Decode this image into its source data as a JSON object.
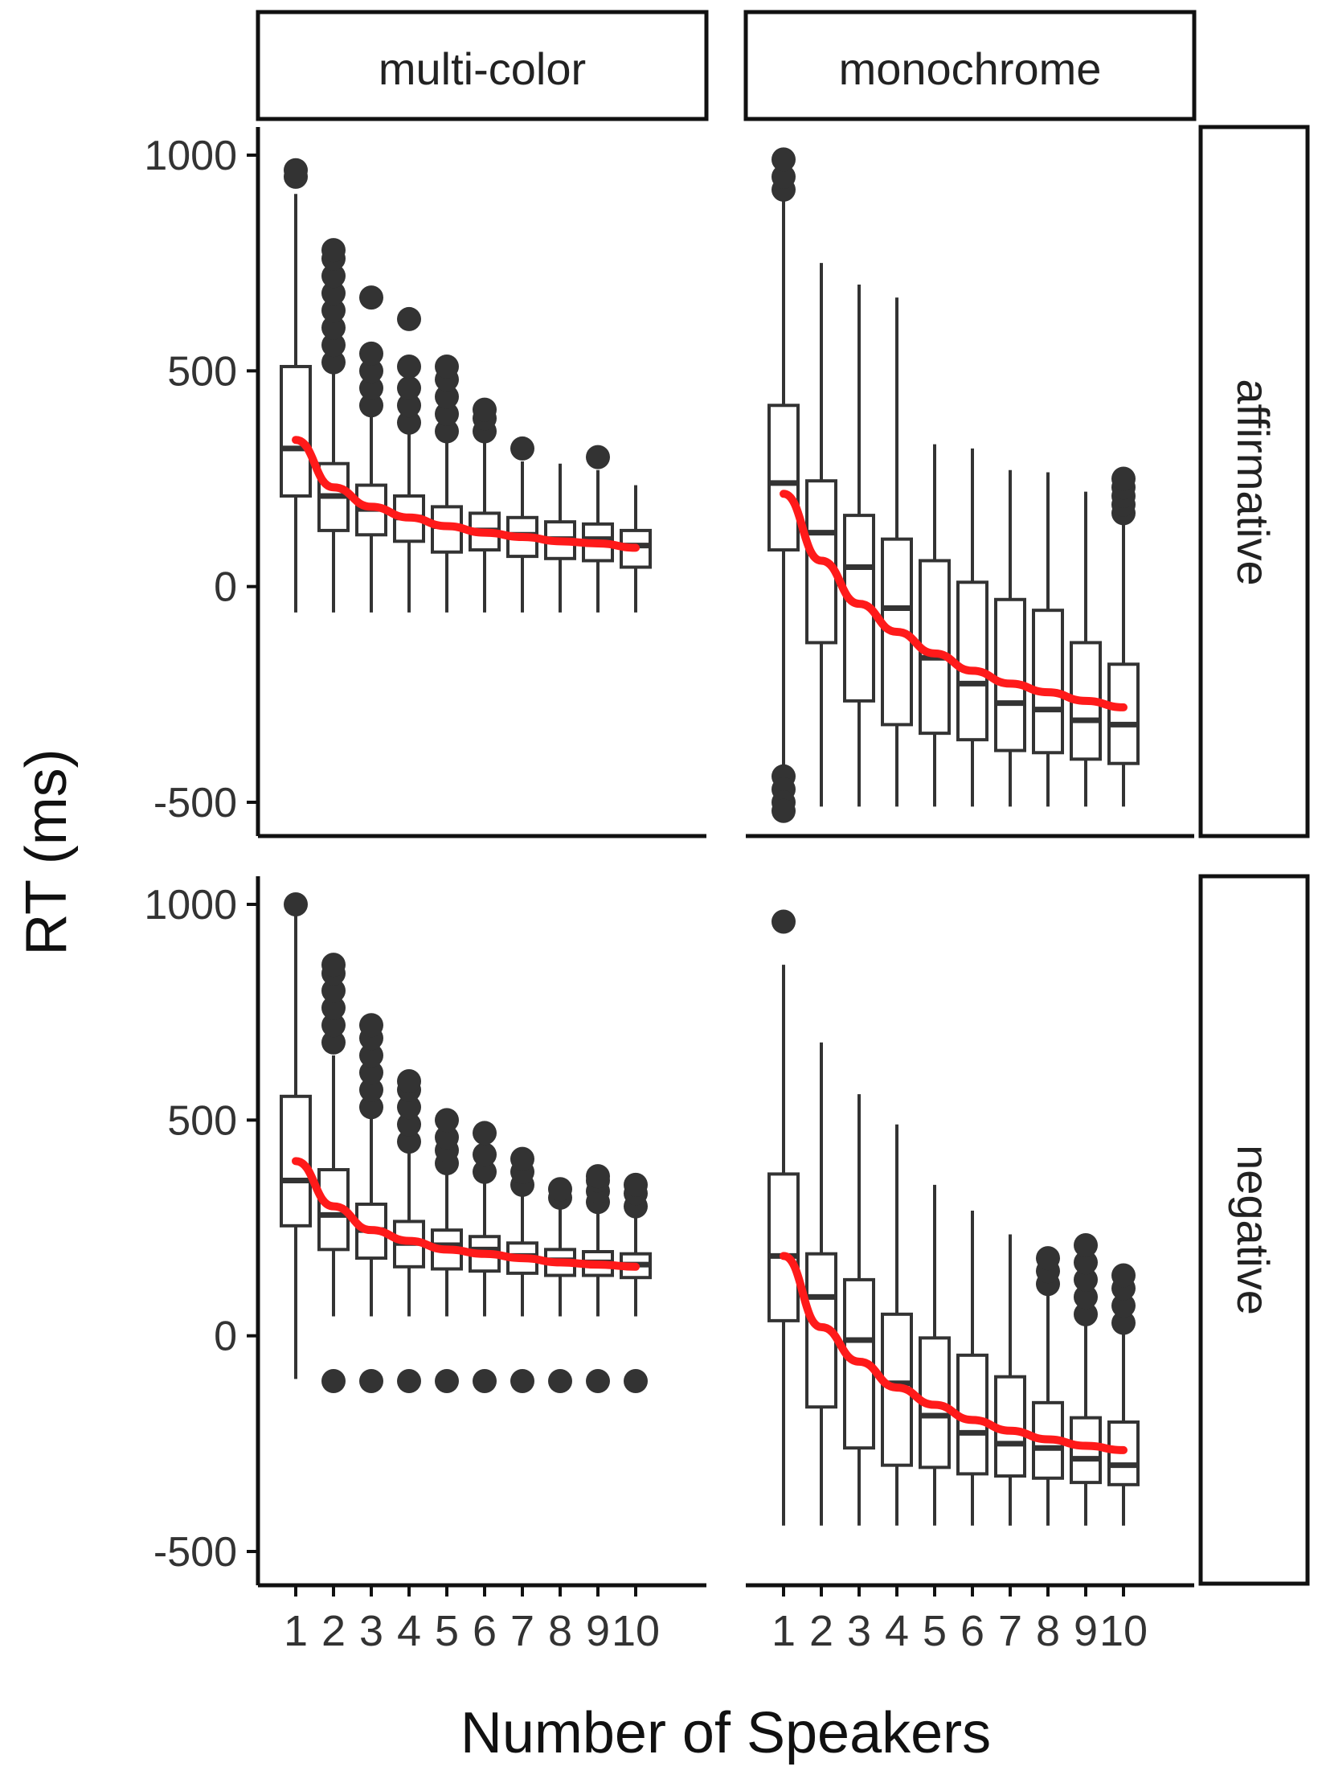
{
  "chart_data": {
    "type": "boxplot",
    "title": "",
    "xlabel": "Number of Speakers",
    "ylabel": "RT (ms)",
    "ylim": [
      -550,
      1070
    ],
    "yticks": [
      1000,
      500,
      0,
      -500
    ],
    "categories": [
      "1",
      "2",
      "3",
      "4",
      "5",
      "6",
      "7",
      "8",
      "9",
      "10"
    ],
    "column_facets": [
      "multi-color",
      "monochrome"
    ],
    "row_facets": [
      "affirmative",
      "negative"
    ],
    "colors": {
      "box": "#333333",
      "trend": "#ff1a1a",
      "outlier": "#333333"
    },
    "panels": [
      {
        "col": "multi-color",
        "row": "affirmative",
        "boxes": [
          {
            "x": "1",
            "lo": -60,
            "q1": 210,
            "med": 320,
            "q3": 510,
            "hi": 910,
            "outliers": [
              950,
              965
            ]
          },
          {
            "x": "2",
            "lo": -60,
            "q1": 130,
            "med": 210,
            "q3": 285,
            "hi": 500,
            "outliers": [
              520,
              560,
              600,
              640,
              680,
              720,
              760,
              780
            ]
          },
          {
            "x": "3",
            "lo": -60,
            "q1": 120,
            "med": 180,
            "q3": 235,
            "hi": 400,
            "outliers": [
              420,
              460,
              500,
              540,
              670
            ]
          },
          {
            "x": "4",
            "lo": -60,
            "q1": 105,
            "med": 160,
            "q3": 210,
            "hi": 355,
            "outliers": [
              380,
              420,
              460,
              510,
              620
            ]
          },
          {
            "x": "5",
            "lo": -60,
            "q1": 80,
            "med": 140,
            "q3": 185,
            "hi": 340,
            "outliers": [
              360,
              400,
              440,
              480,
              510
            ]
          },
          {
            "x": "6",
            "lo": -60,
            "q1": 85,
            "med": 130,
            "q3": 170,
            "hi": 345,
            "outliers": [
              360,
              390,
              410
            ]
          },
          {
            "x": "7",
            "lo": -60,
            "q1": 70,
            "med": 120,
            "q3": 160,
            "hi": 290,
            "outliers": [
              320
            ]
          },
          {
            "x": "8",
            "lo": -60,
            "q1": 65,
            "med": 110,
            "q3": 150,
            "hi": 285,
            "outliers": []
          },
          {
            "x": "9",
            "lo": -60,
            "q1": 60,
            "med": 110,
            "q3": 145,
            "hi": 270,
            "outliers": [
              300
            ]
          },
          {
            "x": "10",
            "lo": -60,
            "q1": 45,
            "med": 95,
            "q3": 130,
            "hi": 235,
            "outliers": []
          }
        ],
        "trend": [
          340,
          230,
          185,
          160,
          140,
          125,
          115,
          105,
          100,
          90
        ]
      },
      {
        "col": "monochrome",
        "row": "affirmative",
        "boxes": [
          {
            "x": "1",
            "lo": -430,
            "q1": 85,
            "med": 240,
            "q3": 420,
            "hi": 900,
            "outliers": [
              920,
              950,
              990,
              -440,
              -470,
              -500,
              -520
            ]
          },
          {
            "x": "2",
            "lo": -510,
            "q1": -130,
            "med": 125,
            "q3": 245,
            "hi": 750,
            "outliers": []
          },
          {
            "x": "3",
            "lo": -510,
            "q1": -265,
            "med": 45,
            "q3": 165,
            "hi": 700,
            "outliers": []
          },
          {
            "x": "4",
            "lo": -510,
            "q1": -320,
            "med": -50,
            "q3": 110,
            "hi": 670,
            "outliers": []
          },
          {
            "x": "5",
            "lo": -510,
            "q1": -340,
            "med": -165,
            "q3": 60,
            "hi": 330,
            "outliers": []
          },
          {
            "x": "6",
            "lo": -510,
            "q1": -355,
            "med": -225,
            "q3": 10,
            "hi": 320,
            "outliers": []
          },
          {
            "x": "7",
            "lo": -510,
            "q1": -380,
            "med": -270,
            "q3": -30,
            "hi": 270,
            "outliers": []
          },
          {
            "x": "8",
            "lo": -510,
            "q1": -385,
            "med": -285,
            "q3": -55,
            "hi": 265,
            "outliers": []
          },
          {
            "x": "9",
            "lo": -510,
            "q1": -400,
            "med": -310,
            "q3": -130,
            "hi": 220,
            "outliers": []
          },
          {
            "x": "10",
            "lo": -510,
            "q1": -410,
            "med": -320,
            "q3": -180,
            "hi": 165,
            "outliers": [
              170,
              190,
              210,
              230,
              250
            ]
          }
        ],
        "trend": [
          215,
          60,
          -40,
          -105,
          -155,
          -195,
          -225,
          -245,
          -265,
          -280
        ]
      },
      {
        "col": "multi-color",
        "row": "negative",
        "boxes": [
          {
            "x": "1",
            "lo": -100,
            "q1": 255,
            "med": 360,
            "q3": 555,
            "hi": 1000,
            "outliers": [
              1000
            ]
          },
          {
            "x": "2",
            "lo": 45,
            "q1": 200,
            "med": 280,
            "q3": 385,
            "hi": 650,
            "outliers": [
              -105,
              680,
              720,
              760,
              800,
              840,
              860
            ]
          },
          {
            "x": "3",
            "lo": 45,
            "q1": 180,
            "med": 245,
            "q3": 305,
            "hi": 510,
            "outliers": [
              -105,
              530,
              570,
              610,
              650,
              690,
              720
            ]
          },
          {
            "x": "4",
            "lo": 45,
            "q1": 160,
            "med": 215,
            "q3": 265,
            "hi": 430,
            "outliers": [
              -105,
              450,
              490,
              530,
              570,
              590
            ]
          },
          {
            "x": "5",
            "lo": 45,
            "q1": 155,
            "med": 210,
            "q3": 245,
            "hi": 390,
            "outliers": [
              -105,
              400,
              430,
              460,
              500
            ]
          },
          {
            "x": "6",
            "lo": 45,
            "q1": 150,
            "med": 200,
            "q3": 230,
            "hi": 370,
            "outliers": [
              -105,
              380,
              420,
              470
            ]
          },
          {
            "x": "7",
            "lo": 45,
            "q1": 145,
            "med": 185,
            "q3": 215,
            "hi": 330,
            "outliers": [
              -105,
              350,
              380,
              410
            ]
          },
          {
            "x": "8",
            "lo": 45,
            "q1": 140,
            "med": 175,
            "q3": 200,
            "hi": 300,
            "outliers": [
              -105,
              320,
              340
            ]
          },
          {
            "x": "9",
            "lo": 45,
            "q1": 140,
            "med": 170,
            "q3": 195,
            "hi": 290,
            "outliers": [
              -105,
              310,
              335,
              360,
              370
            ]
          },
          {
            "x": "10",
            "lo": 45,
            "q1": 135,
            "med": 165,
            "q3": 190,
            "hi": 285,
            "outliers": [
              -105,
              300,
              330,
              350
            ]
          }
        ],
        "trend": [
          405,
          300,
          245,
          220,
          200,
          190,
          180,
          170,
          165,
          160
        ]
      },
      {
        "col": "monochrome",
        "row": "negative",
        "boxes": [
          {
            "x": "1",
            "lo": -440,
            "q1": 35,
            "med": 185,
            "q3": 375,
            "hi": 860,
            "outliers": [
              960
            ]
          },
          {
            "x": "2",
            "lo": -440,
            "q1": -165,
            "med": 90,
            "q3": 190,
            "hi": 680,
            "outliers": []
          },
          {
            "x": "3",
            "lo": -440,
            "q1": -260,
            "med": -10,
            "q3": 130,
            "hi": 560,
            "outliers": []
          },
          {
            "x": "4",
            "lo": -440,
            "q1": -300,
            "med": -110,
            "q3": 50,
            "hi": 490,
            "outliers": []
          },
          {
            "x": "5",
            "lo": -440,
            "q1": -305,
            "med": -185,
            "q3": -5,
            "hi": 350,
            "outliers": []
          },
          {
            "x": "6",
            "lo": -440,
            "q1": -320,
            "med": -225,
            "q3": -45,
            "hi": 290,
            "outliers": []
          },
          {
            "x": "7",
            "lo": -440,
            "q1": -325,
            "med": -250,
            "q3": -95,
            "hi": 235,
            "outliers": []
          },
          {
            "x": "8",
            "lo": -440,
            "q1": -330,
            "med": -260,
            "q3": -155,
            "hi": 110,
            "outliers": [
              120,
              150,
              180
            ]
          },
          {
            "x": "9",
            "lo": -440,
            "q1": -340,
            "med": -285,
            "q3": -190,
            "hi": 30,
            "outliers": [
              50,
              90,
              130,
              170,
              210
            ]
          },
          {
            "x": "10",
            "lo": -440,
            "q1": -345,
            "med": -300,
            "q3": -200,
            "hi": 15,
            "outliers": [
              30,
              70,
              110,
              140
            ]
          }
        ],
        "trend": [
          185,
          20,
          -60,
          -120,
          -160,
          -195,
          -220,
          -240,
          -255,
          -265
        ]
      }
    ]
  }
}
